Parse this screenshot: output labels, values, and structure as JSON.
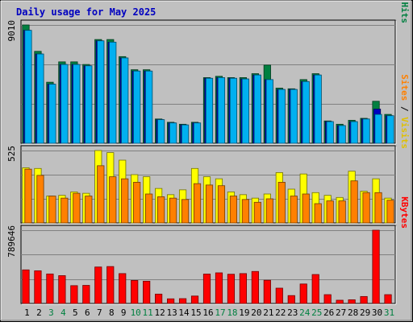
{
  "chart_data": {
    "title": "Daily usage for May 2025",
    "type": "bar",
    "days": [
      "1",
      "2",
      "3",
      "4",
      "5",
      "6",
      "7",
      "8",
      "9",
      "10",
      "11",
      "12",
      "13",
      "14",
      "15",
      "16",
      "17",
      "18",
      "19",
      "20",
      "21",
      "22",
      "23",
      "24",
      "25",
      "26",
      "27",
      "28",
      "29",
      "30",
      "31"
    ],
    "weekend_days": [
      "3",
      "4",
      "10",
      "11",
      "17",
      "18",
      "24",
      "25",
      "31"
    ],
    "panels": [
      {
        "id": "hits-files-pages",
        "max_label": "9010",
        "ymax": 9010,
        "right_label": [
          {
            "text": "Pages",
            "color": "#00b0f0"
          },
          {
            "text": " / ",
            "color": "#000000"
          },
          {
            "text": "Files",
            "color": "#0000c0"
          },
          {
            "text": " / ",
            "color": "#000000"
          },
          {
            "text": "Hits",
            "color": "#008040"
          }
        ],
        "series": [
          {
            "name": "Hits",
            "color": "#008040",
            "values": [
              9010,
              7000,
              4650,
              6200,
              6200,
              6000,
              7900,
              7900,
              6600,
              5600,
              5600,
              1850,
              1600,
              1450,
              1600,
              5000,
              5100,
              5000,
              5000,
              5300,
              5950,
              4200,
              4150,
              4850,
              5300,
              1700,
              1450,
              1750,
              1900,
              3200,
              2200
            ]
          },
          {
            "name": "Files",
            "color": "#0000c0",
            "values": [
              8600,
              6800,
              4500,
              6000,
              6000,
              5900,
              7800,
              7700,
              6500,
              5500,
              5500,
              1800,
              1550,
              1400,
              1550,
              4950,
              5000,
              4950,
              4900,
              5200,
              4850,
              4100,
              4100,
              4700,
              5200,
              1650,
              1350,
              1650,
              1850,
              2600,
              2100
            ]
          },
          {
            "name": "Pages",
            "color": "#00b0f0",
            "values": [
              8600,
              6800,
              4500,
              6000,
              6000,
              5900,
              7800,
              7700,
              6500,
              5500,
              5500,
              1800,
              1550,
              1400,
              1550,
              4950,
              5000,
              4950,
              4900,
              5200,
              4850,
              4100,
              4100,
              4700,
              5200,
              1650,
              1350,
              1650,
              1850,
              2200,
              2100
            ]
          }
        ]
      },
      {
        "id": "visits-sites",
        "max_label": "525",
        "ymax": 525,
        "right_label": [
          {
            "text": "Sites",
            "color": "#ff8000"
          },
          {
            "text": " / ",
            "color": "#000000"
          },
          {
            "text": "Visits",
            "color": "#e0c000"
          }
        ],
        "series": [
          {
            "name": "Visits",
            "color": "#ffff00",
            "values": [
              400,
              395,
              195,
              200,
              225,
              215,
              525,
              510,
              455,
              350,
              335,
              250,
              205,
              240,
              395,
              335,
              320,
              225,
              205,
              180,
              210,
              365,
              245,
              355,
              220,
              200,
              185,
              375,
              230,
              320,
              180
            ]
          },
          {
            "name": "Sites",
            "color": "#ff8000",
            "values": [
              390,
              345,
              195,
              180,
              215,
              195,
              415,
              335,
              320,
              295,
              210,
              190,
              180,
              170,
              285,
              275,
              270,
              195,
              170,
              150,
              175,
              295,
              195,
              210,
              140,
              160,
              160,
              305,
              220,
              220,
              165
            ]
          }
        ]
      },
      {
        "id": "kbytes",
        "max_label": "789646",
        "ymax": 789646,
        "right_label": [
          {
            "text": "KBytes",
            "color": "#ff0000"
          }
        ],
        "series": [
          {
            "name": "KBytes",
            "color": "#ff0000",
            "values": [
              362000,
              352000,
              318000,
              300000,
              192000,
              195000,
              393000,
              398000,
              322000,
              248000,
              240000,
              101000,
              50000,
              52000,
              80000,
              317000,
              330000,
              315000,
              322000,
              345000,
              250000,
              165000,
              85000,
              210000,
              312000,
              95000,
              35000,
              40000,
              75000,
              789646,
              95000
            ]
          }
        ]
      }
    ]
  }
}
